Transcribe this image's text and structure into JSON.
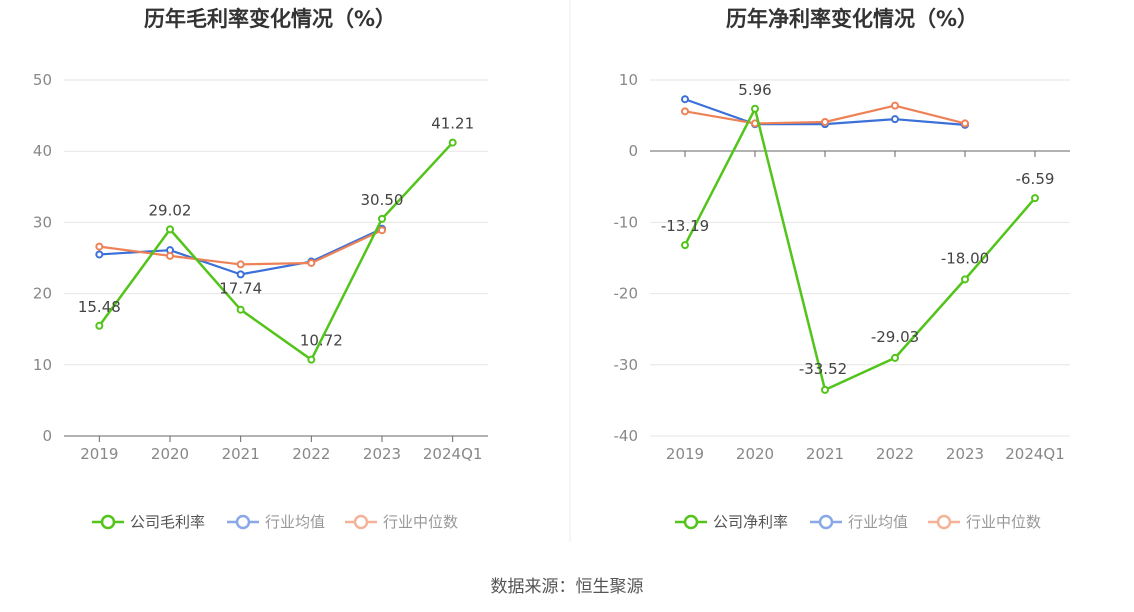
{
  "source_note": "数据来源：恒生聚源",
  "colors": {
    "company": "#52c41a",
    "industry_avg": "#3a70d8",
    "industry_median": "#ee8257",
    "grid": "#e6e6e6",
    "axis": "#666666",
    "divider": "#eeeeee"
  },
  "chart_data": [
    {
      "type": "line",
      "title": "历年毛利率变化情况（%）",
      "categories": [
        "2019",
        "2020",
        "2021",
        "2022",
        "2023",
        "2024Q1"
      ],
      "ylim": [
        0,
        50
      ],
      "yticks": [
        0,
        10,
        20,
        30,
        40,
        50
      ],
      "grid": true,
      "legend_position": "bottom",
      "series": [
        {
          "name": "公司毛利率",
          "key": "company",
          "values": [
            15.48,
            29.02,
            17.74,
            10.72,
            30.5,
            41.21
          ],
          "labels": [
            "15.48",
            "29.02",
            "17.74",
            "10.72",
            "30.50",
            "41.21"
          ]
        },
        {
          "name": "行业均值",
          "key": "industry_avg",
          "values": [
            25.5,
            26.1,
            22.7,
            24.5,
            29.1,
            null
          ]
        },
        {
          "name": "行业中位数",
          "key": "industry_median",
          "values": [
            26.6,
            25.3,
            24.1,
            24.3,
            28.9,
            null
          ]
        }
      ]
    },
    {
      "type": "line",
      "title": "历年净利率变化情况（%）",
      "categories": [
        "2019",
        "2020",
        "2021",
        "2022",
        "2023",
        "2024Q1"
      ],
      "ylim": [
        -40,
        10
      ],
      "yticks": [
        -40,
        -30,
        -20,
        -10,
        0,
        10
      ],
      "grid": true,
      "legend_position": "bottom",
      "series": [
        {
          "name": "公司净利率",
          "key": "company",
          "values": [
            -13.19,
            5.96,
            -33.52,
            -29.03,
            -18.0,
            -6.59
          ],
          "labels": [
            "-13.19",
            "5.96",
            "-33.52",
            "-29.03",
            "-18.00",
            "-6.59"
          ]
        },
        {
          "name": "行业均值",
          "key": "industry_avg",
          "values": [
            7.3,
            3.8,
            3.8,
            4.5,
            3.7,
            null
          ]
        },
        {
          "name": "行业中位数",
          "key": "industry_median",
          "values": [
            5.6,
            3.9,
            4.1,
            6.4,
            3.9,
            null
          ]
        }
      ]
    }
  ]
}
